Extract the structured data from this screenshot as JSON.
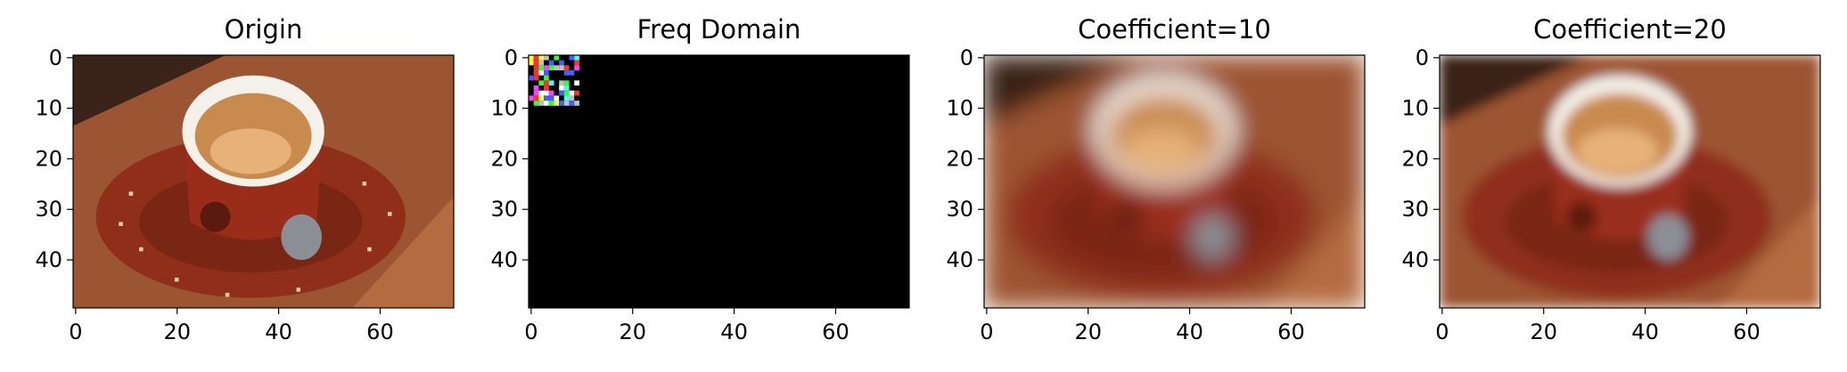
{
  "chart_data": [
    {
      "type": "heatmap",
      "title": "Origin",
      "xlabel": "",
      "ylabel": "",
      "image_size": {
        "width": 75,
        "height": 50
      },
      "xlim": [
        -0.5,
        74.5
      ],
      "ylim": [
        49.5,
        -0.5
      ],
      "xticks": [
        0,
        20,
        40,
        60
      ],
      "yticks": [
        0,
        10,
        20,
        30,
        40
      ],
      "grid": false,
      "content": "photo",
      "blur": 0
    },
    {
      "type": "heatmap",
      "title": "Freq Domain",
      "xlabel": "",
      "ylabel": "",
      "image_size": {
        "width": 75,
        "height": 50
      },
      "xlim": [
        -0.5,
        74.5
      ],
      "ylim": [
        49.5,
        -0.5
      ],
      "xticks": [
        0,
        20,
        40,
        60
      ],
      "yticks": [
        0,
        10,
        20,
        30,
        40
      ],
      "grid": false,
      "content": "spectrum",
      "background_color": "#000000",
      "nonzero_region": {
        "x": [
          0,
          9
        ],
        "y": [
          0,
          9
        ]
      }
    },
    {
      "type": "heatmap",
      "title": "Coefficient=10",
      "xlabel": "",
      "ylabel": "",
      "image_size": {
        "width": 75,
        "height": 50
      },
      "xlim": [
        -0.5,
        74.5
      ],
      "ylim": [
        49.5,
        -0.5
      ],
      "xticks": [
        0,
        20,
        40,
        60
      ],
      "yticks": [
        0,
        10,
        20,
        30,
        40
      ],
      "grid": false,
      "content": "photo",
      "blur": 5
    },
    {
      "type": "heatmap",
      "title": "Coefficient=20",
      "xlabel": "",
      "ylabel": "",
      "image_size": {
        "width": 75,
        "height": 50
      },
      "xlim": [
        -0.5,
        74.5
      ],
      "ylim": [
        49.5,
        -0.5
      ],
      "xticks": [
        0,
        20,
        40,
        60
      ],
      "yticks": [
        0,
        10,
        20,
        30,
        40
      ],
      "grid": false,
      "content": "photo",
      "blur": 2.5
    }
  ],
  "colors": {
    "table": "#9c5532",
    "table_dark": "#3a2419",
    "saucer": "#8f2f1a",
    "cup": "#9a2d1a",
    "cup_rim": "#f4f1ea",
    "coffee": "#c98a4e",
    "coffee_light": "#e6b27a",
    "spoon": "#8a8f96"
  }
}
